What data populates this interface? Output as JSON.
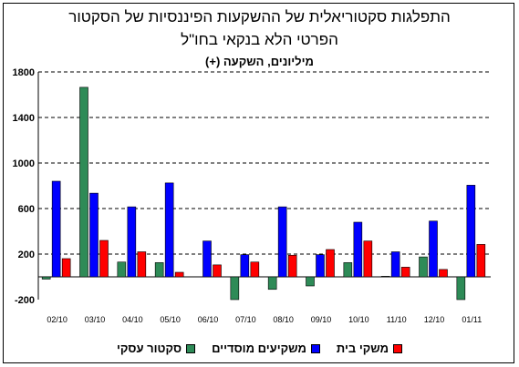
{
  "titles": {
    "line1": "התפלגות סקטוריאלית של ההשקעות הפיננסיות של הסקטור",
    "line2": "הפרטי הלא בנקאי בחו\"ל",
    "line3": "מיליונים, השקעה (+)"
  },
  "colors": {
    "business": "#2e8b57",
    "institutional": "#0000ff",
    "households": "#ff0000"
  },
  "chart_data": {
    "type": "bar",
    "title": "התפלגות סקטוריאלית של ההשקעות הפיננסיות של הסקטור הפרטי הלא בנקאי בחו\"ל",
    "subtitle": "מיליונים, השקעה (+)",
    "categories": [
      "02/10",
      "03/10",
      "04/10",
      "05/10",
      "06/10",
      "07/10",
      "08/10",
      "09/10",
      "10/10",
      "11/10",
      "12/10",
      "01/11"
    ],
    "ylim": [
      -200,
      1800
    ],
    "yticks": [
      -200,
      200,
      600,
      1000,
      1400,
      1800
    ],
    "ytick_labels": [
      "-200",
      "200",
      "600",
      "1000",
      "1400",
      "1800"
    ],
    "grid": true,
    "legend_position": "bottom",
    "series": [
      {
        "name": "סקטור עסקי",
        "color_key": "business",
        "values": [
          -20,
          1665,
          130,
          125,
          0,
          -200,
          -110,
          -80,
          125,
          5,
          175,
          -200
        ]
      },
      {
        "name": "משקיעים מוסדיים",
        "color_key": "institutional",
        "values": [
          840,
          735,
          615,
          825,
          315,
          195,
          615,
          195,
          480,
          220,
          490,
          805
        ]
      },
      {
        "name": "משקי בית",
        "color_key": "households",
        "values": [
          160,
          320,
          220,
          40,
          105,
          130,
          190,
          240,
          315,
          85,
          65,
          285
        ]
      }
    ]
  }
}
